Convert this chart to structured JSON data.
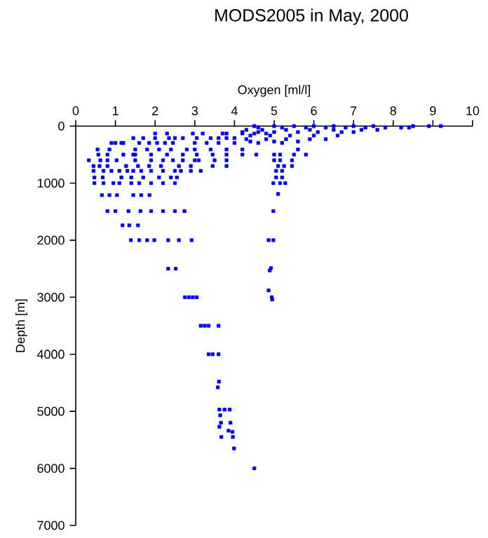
{
  "chart_data": {
    "type": "scatter",
    "title": "MODS2005 in May, 2000",
    "xlabel": "Oxygen [ml/l]",
    "ylabel": "Depth [m]",
    "xlim": [
      0,
      10
    ],
    "xticks": [
      0,
      1,
      2,
      3,
      4,
      5,
      6,
      7,
      8,
      9,
      10
    ],
    "ylim": [
      7000,
      0
    ],
    "yticks": [
      0,
      1000,
      2000,
      3000,
      4000,
      5000,
      6000,
      7000
    ],
    "marker": "square",
    "grid": false,
    "series": [
      {
        "color": "#0000ff",
        "x": [
          4.5,
          5.0,
          5.5,
          6.0,
          6.5,
          7.0,
          7.5,
          8.5,
          8.9,
          9.2,
          4.6,
          5.2,
          5.8,
          6.3,
          6.8,
          7.3,
          7.8,
          8.2,
          8.4,
          4.3,
          4.7,
          5.3,
          5.9,
          6.5,
          7.2,
          7.6,
          4.2,
          4.6,
          5.0,
          5.6,
          6.1,
          6.7,
          7.0,
          4.4,
          4.9,
          5.4,
          6.0,
          6.6,
          4.3,
          4.8,
          5.3,
          5.9,
          6.3,
          4.4,
          5.0,
          5.6,
          2.0,
          2.3,
          2.95,
          3.2,
          3.7,
          3.8,
          4.2,
          4.5,
          4.8,
          1.45,
          1.7,
          2.0,
          2.35,
          2.5,
          2.7,
          3.05,
          3.4,
          3.6,
          3.8,
          4.0,
          0.9,
          1.0,
          1.15,
          1.2,
          1.6,
          1.85,
          2.05,
          2.25,
          2.45,
          3.0,
          3.3,
          3.6,
          4.0,
          4.6,
          5.2,
          0.55,
          0.85,
          1.5,
          1.8,
          2.1,
          2.4,
          2.8,
          3.0,
          3.4,
          3.8,
          4.2,
          5.6,
          0.57,
          0.8,
          1.2,
          1.45,
          1.5,
          1.9,
          2.3,
          2.7,
          3.05,
          3.45,
          3.8,
          4.2,
          4.55,
          5.0,
          5.15,
          5.5,
          5.8,
          0.33,
          0.62,
          0.8,
          1.03,
          1.5,
          1.9,
          2.2,
          2.45,
          2.7,
          3.0,
          3.1,
          3.5,
          3.8,
          5.0,
          5.15,
          5.45,
          0.45,
          0.6,
          0.8,
          1.27,
          1.57,
          1.85,
          2.15,
          2.6,
          2.9,
          3.45,
          3.8,
          5.1,
          5.25,
          5.45,
          0.45,
          0.7,
          0.9,
          1.1,
          1.3,
          1.45,
          1.65,
          1.9,
          2.2,
          2.5,
          2.65,
          2.9,
          3.15,
          5.05,
          5.2,
          0.47,
          0.68,
          1.15,
          1.4,
          1.7,
          2.1,
          2.4,
          2.55,
          5.05,
          5.2,
          0.47,
          0.7,
          0.95,
          1.1,
          1.4,
          1.6,
          1.9,
          2.2,
          2.5,
          4.98,
          5.15,
          5.28,
          0.66,
          0.85,
          1.04,
          1.45,
          1.65,
          1.86,
          5.1,
          0.8,
          1.0,
          1.33,
          1.63,
          1.9,
          2.2,
          2.5,
          2.74,
          4.98,
          1.18,
          1.35,
          1.57,
          1.39,
          1.6,
          1.8,
          1.98,
          2.33,
          2.6,
          2.92,
          4.86,
          4.98,
          2.33,
          2.52,
          4.92,
          4.89,
          4.86,
          4.94,
          4.95,
          2.75,
          2.85,
          2.95,
          3.05,
          3.15,
          3.25,
          3.35,
          3.6,
          3.35,
          3.45,
          3.6,
          3.61,
          3.58,
          3.62,
          3.75,
          3.88,
          3.64,
          3.66,
          3.62,
          3.9,
          3.85,
          3.95,
          3.96,
          3.67,
          3.99,
          4.5
        ],
        "values": [
          0,
          0,
          0,
          0,
          0,
          0,
          0,
          0,
          0,
          0,
          25,
          25,
          25,
          25,
          25,
          25,
          25,
          25,
          25,
          65,
          65,
          65,
          65,
          65,
          65,
          65,
          105,
          105,
          105,
          105,
          105,
          105,
          105,
          165,
          165,
          165,
          165,
          165,
          230,
          230,
          230,
          230,
          230,
          270,
          270,
          270,
          130,
          130,
          130,
          130,
          130,
          130,
          130,
          130,
          130,
          210,
          210,
          210,
          210,
          210,
          210,
          210,
          210,
          210,
          210,
          210,
          295,
          295,
          295,
          295,
          295,
          295,
          295,
          295,
          295,
          295,
          295,
          295,
          295,
          295,
          295,
          410,
          410,
          410,
          410,
          410,
          410,
          410,
          410,
          410,
          410,
          410,
          410,
          500,
          500,
          500,
          500,
          500,
          500,
          500,
          500,
          500,
          500,
          500,
          500,
          500,
          500,
          500,
          500,
          500,
          600,
          600,
          600,
          600,
          600,
          600,
          600,
          600,
          600,
          600,
          600,
          600,
          600,
          600,
          600,
          600,
          700,
          700,
          700,
          700,
          700,
          700,
          700,
          700,
          700,
          700,
          700,
          700,
          700,
          700,
          785,
          785,
          785,
          785,
          785,
          785,
          785,
          785,
          785,
          785,
          785,
          785,
          785,
          785,
          785,
          900,
          900,
          900,
          900,
          900,
          900,
          900,
          900,
          900,
          900,
          1000,
          1000,
          1000,
          1000,
          1000,
          1000,
          1000,
          1000,
          1000,
          1000,
          1000,
          1000,
          1210,
          1210,
          1210,
          1210,
          1210,
          1210,
          1190,
          1490,
          1490,
          1490,
          1490,
          1490,
          1490,
          1490,
          1490,
          1490,
          1740,
          1740,
          1740,
          2000,
          2000,
          2000,
          2000,
          2000,
          2000,
          2000,
          2000,
          2000,
          2500,
          2500,
          2490,
          2530,
          2880,
          3000,
          3040,
          3000,
          3000,
          3000,
          3000,
          3500,
          3500,
          3500,
          3500,
          4000,
          4000,
          4000,
          4480,
          4580,
          4970,
          4970,
          4970,
          5070,
          5200,
          5270,
          5200,
          5340,
          5360,
          5450,
          5450,
          5650,
          6000
        ]
      }
    ]
  }
}
